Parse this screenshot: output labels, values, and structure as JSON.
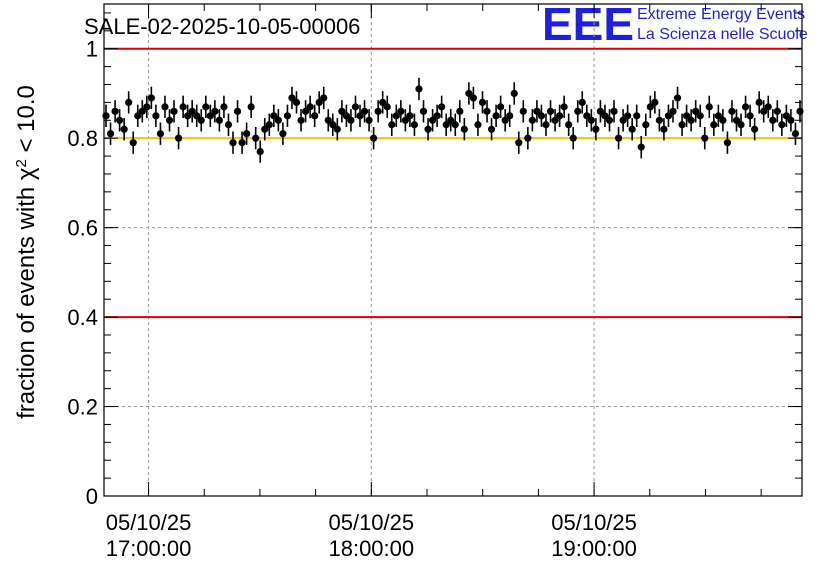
{
  "chart_data": {
    "type": "scatter",
    "title": "SALE-02-2025-10-05-00006",
    "xlabel": "",
    "ylabel": "fraction of events with χ² < 10.0",
    "ylabel_parts": {
      "prefix": "fraction of events with ",
      "symbol": "χ",
      "sup": "2",
      "suffix": " < 10.0"
    },
    "ylim": [
      0,
      1.1
    ],
    "y_ticks": [
      0,
      0.2,
      0.4,
      0.6,
      0.8,
      1
    ],
    "y_tick_labels": [
      "0",
      "0.2",
      "0.4",
      "0.6",
      "0.8",
      "1"
    ],
    "x_range_minutes": [
      -12,
      176
    ],
    "x_major_ticks_minutes": [
      0,
      60,
      120
    ],
    "x_tick_labels": [
      {
        "date": "05/10/25",
        "time": "17:00:00"
      },
      {
        "date": "05/10/25",
        "time": "18:00:00"
      },
      {
        "date": "05/10/25",
        "time": "19:00:00"
      }
    ],
    "reference_lines": [
      {
        "y": 1.0,
        "color": "#e00000"
      },
      {
        "y": 0.8,
        "color": "#ffc000"
      },
      {
        "y": 0.4,
        "color": "#e00000"
      }
    ],
    "grid": true,
    "series": [
      {
        "name": "fraction",
        "error": 0.025,
        "values": [
          0.85,
          0.81,
          0.86,
          0.84,
          0.82,
          0.88,
          0.79,
          0.85,
          0.86,
          0.87,
          0.89,
          0.85,
          0.81,
          0.87,
          0.84,
          0.86,
          0.8,
          0.87,
          0.85,
          0.86,
          0.85,
          0.84,
          0.87,
          0.85,
          0.86,
          0.84,
          0.87,
          0.83,
          0.79,
          0.86,
          0.79,
          0.81,
          0.87,
          0.8,
          0.77,
          0.82,
          0.83,
          0.85,
          0.84,
          0.81,
          0.85,
          0.89,
          0.88,
          0.84,
          0.86,
          0.87,
          0.85,
          0.88,
          0.89,
          0.84,
          0.83,
          0.82,
          0.86,
          0.85,
          0.84,
          0.87,
          0.85,
          0.86,
          0.84,
          0.8,
          0.86,
          0.88,
          0.87,
          0.83,
          0.85,
          0.86,
          0.84,
          0.85,
          0.83,
          0.91,
          0.86,
          0.82,
          0.84,
          0.85,
          0.87,
          0.83,
          0.84,
          0.83,
          0.86,
          0.82,
          0.9,
          0.89,
          0.83,
          0.88,
          0.86,
          0.82,
          0.85,
          0.87,
          0.84,
          0.85,
          0.9,
          0.79,
          0.86,
          0.8,
          0.84,
          0.86,
          0.85,
          0.83,
          0.86,
          0.84,
          0.85,
          0.87,
          0.83,
          0.8,
          0.86,
          0.88,
          0.85,
          0.84,
          0.82,
          0.86,
          0.85,
          0.84,
          0.86,
          0.8,
          0.84,
          0.85,
          0.82,
          0.85,
          0.78,
          0.83,
          0.87,
          0.88,
          0.84,
          0.82,
          0.85,
          0.86,
          0.89,
          0.83,
          0.85,
          0.84,
          0.86,
          0.85,
          0.8,
          0.87,
          0.83,
          0.85,
          0.84,
          0.79,
          0.86,
          0.84,
          0.83,
          0.87,
          0.85,
          0.82,
          0.88,
          0.86,
          0.87,
          0.84,
          0.86,
          0.83,
          0.85,
          0.84,
          0.81,
          0.86
        ]
      }
    ]
  },
  "logo": {
    "mark": "EEE",
    "line1": "Extreme Energy Events",
    "line2": "La Scienza nelle Scuole",
    "color": "#1f1fe0"
  }
}
